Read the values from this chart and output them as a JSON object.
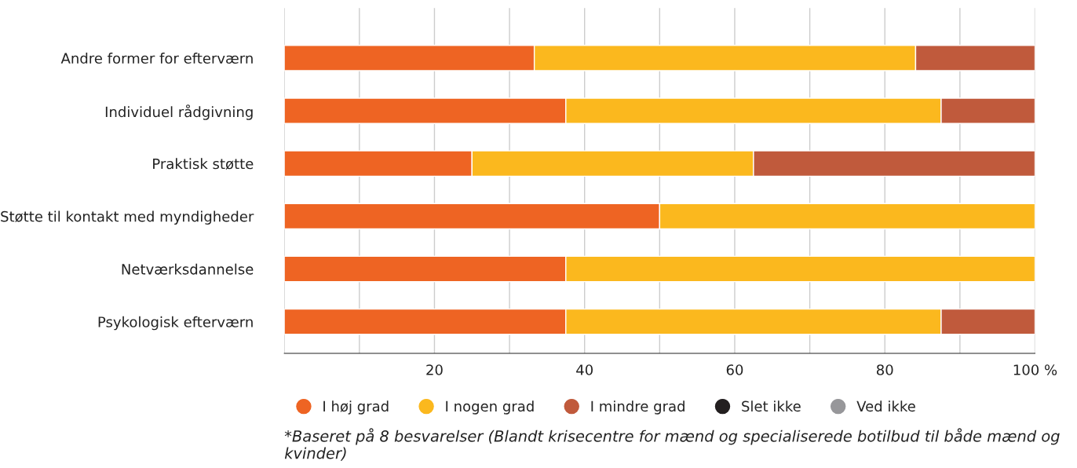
{
  "chart_data": {
    "type": "bar",
    "orientation": "horizontal",
    "stacked": true,
    "categories": [
      "Andre former for efterværn",
      "Individuel rådgivning",
      "Praktisk støtte",
      "Støtte til kontakt med myndigheder",
      "Netværksdannelse",
      "Psykologisk efterværn"
    ],
    "series": [
      {
        "name": "I høj grad",
        "color": "#ee6423",
        "values": [
          33.3,
          37.5,
          25,
          50,
          37.5,
          37.5
        ]
      },
      {
        "name": "I nogen grad",
        "color": "#fbb81e",
        "values": [
          50.8,
          50,
          37.5,
          50,
          62.5,
          50
        ]
      },
      {
        "name": "I mindre grad",
        "color": "#c05a3c",
        "values": [
          15.9,
          12.5,
          37.5,
          null,
          null,
          12.5
        ]
      },
      {
        "name": "Slet ikke",
        "color": "#231f20",
        "values": [
          null,
          null,
          null,
          null,
          null,
          null
        ]
      },
      {
        "name": "Ved ikke",
        "color": "#97979a",
        "values": [
          null,
          null,
          null,
          null,
          null,
          null
        ]
      }
    ],
    "xlim": [
      0,
      100
    ],
    "xticks": [
      {
        "value": 0,
        "label": null
      },
      {
        "value": 10,
        "label": null
      },
      20,
      {
        "value": 30,
        "label": null
      },
      40,
      {
        "value": 50,
        "label": null
      },
      60,
      {
        "value": 70,
        "label": null
      },
      80,
      {
        "value": 90,
        "label": null
      },
      {
        "value": 100,
        "label": "100 %"
      }
    ],
    "grid": "x",
    "legend": "bottom",
    "marker": "circle",
    "annotations": [
      "*Baseret på 8 besvarelser (Blandt krisecentre for mænd og specialiserede botilbud til både mænd og kvinder)"
    ]
  }
}
